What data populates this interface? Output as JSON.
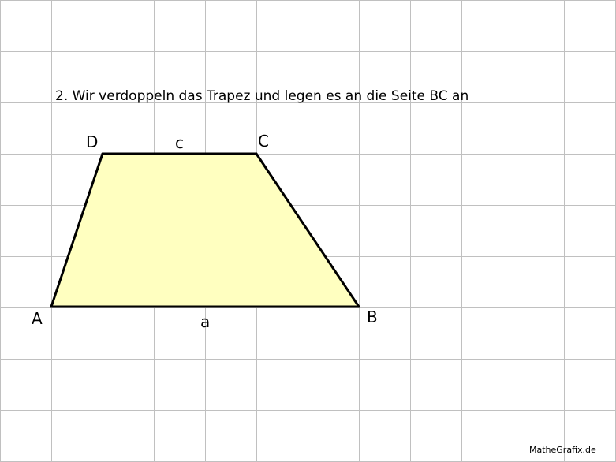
{
  "caption": "2. Wir verdoppeln das Trapez und legen es an die Seite BC an",
  "vertices": {
    "A": "A",
    "B": "B",
    "C": "C",
    "D": "D"
  },
  "sides": {
    "a": "a",
    "c": "c"
  },
  "credit": "MatheGrafix.de",
  "colors": {
    "grid": "#c0c0c0",
    "fill": "#ffffc0",
    "edge": "#000000"
  }
}
